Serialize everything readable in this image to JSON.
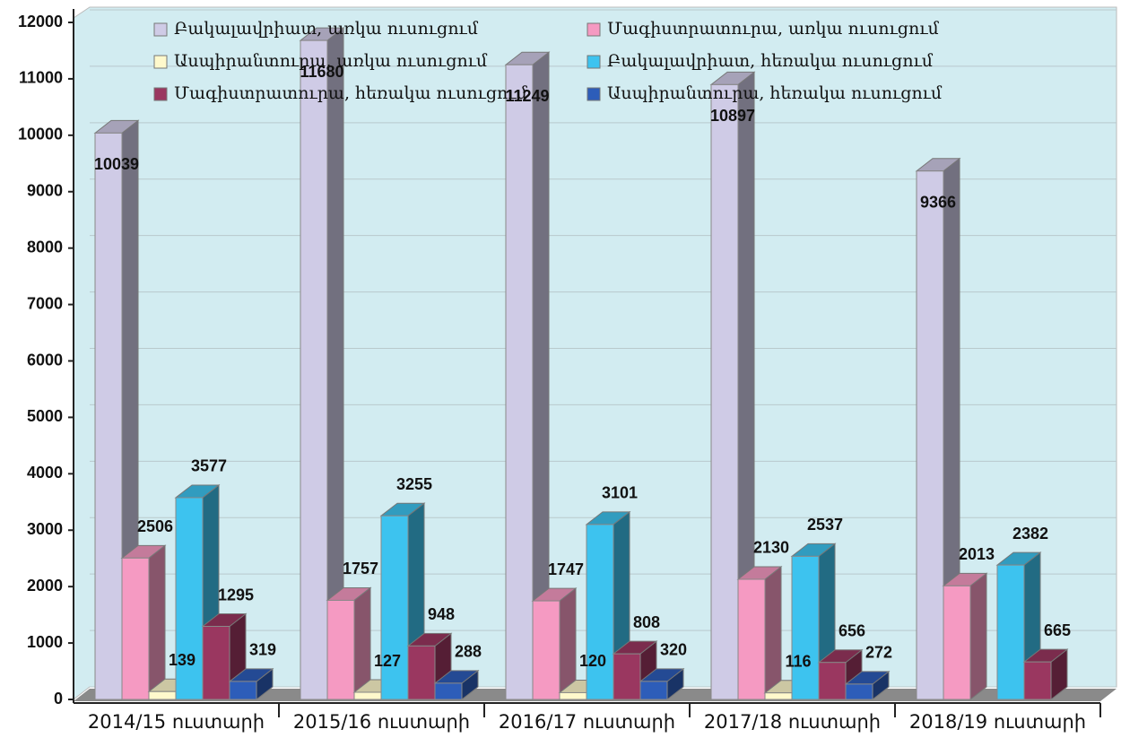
{
  "chart_data": {
    "type": "bar3d",
    "categories": [
      "2014/15 ուստարի",
      "2015/16 ուստարի",
      "2016/17 ուստարի",
      "2017/18 ուստարի",
      "2018/19 ուստարի"
    ],
    "series": [
      {
        "name": "Բակալավրիատ, առկա ուսուցում",
        "color": "#cfcbe6",
        "values": [
          10039,
          11680,
          11249,
          10897,
          9366
        ]
      },
      {
        "name": "Մագիստրատուրա, առկա ուսուցում",
        "color": "#f59ac2",
        "values": [
          2506,
          1757,
          1747,
          2130,
          2013
        ]
      },
      {
        "name": "Ասպիրանտուրա, առկա ուսուցում",
        "color": "#fff9cc",
        "values": [
          139,
          127,
          120,
          116,
          null
        ]
      },
      {
        "name": "Բակալավրիատ, հեռակա ուսուցում",
        "color": "#3dc3ef",
        "values": [
          3577,
          3255,
          3101,
          2537,
          2382
        ]
      },
      {
        "name": "Մագիստրատուրա, հեռակա ուսուցում",
        "color": "#9a3760",
        "values": [
          1295,
          948,
          808,
          656,
          665
        ]
      },
      {
        "name": "Ասպիրանտուրա, հեռակա ուսուցում",
        "color": "#2d5db9",
        "values": [
          319,
          288,
          320,
          272,
          null
        ]
      }
    ],
    "ylim": [
      0,
      12000
    ],
    "yticks": [
      0,
      1000,
      2000,
      3000,
      4000,
      5000,
      6000,
      7000,
      8000,
      9000,
      10000,
      11000,
      12000
    ],
    "grid": true
  }
}
